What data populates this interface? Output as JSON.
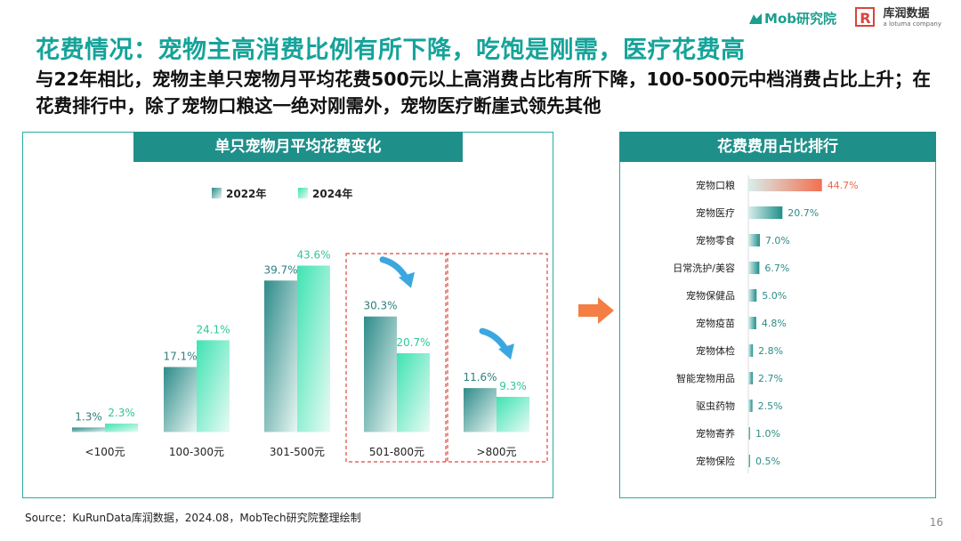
{
  "title": "花费情况：宠物主高消费比例有所下降，吃饱是刚需，医疗花费高",
  "subtitle": "与22年相比，宠物主单只宠物月平均花费500元以上高消费占比有所下降，100-500元中档消费占比上升；在花费排行中，除了宠物口粮这一绝对刚需外，宠物医疗断崖式领先其他",
  "logos": {
    "mob": "Mob研究院",
    "kurun_mark": "R",
    "kurun": "库润数据",
    "kurun_sub": "a lotuma company"
  },
  "source": "Source：KuRunData库润数据，2024.08，MobTech研究院整理绘制",
  "page_number": "16",
  "colors": {
    "accent": "#15A39A",
    "header": "#1F8F8A",
    "series2022": "#2E8B8A",
    "series2024": "#3FE3B2",
    "highlight": "#F36F4F",
    "arrow": "#3BA7E0",
    "dash": "#E0483E"
  },
  "chart_data": [
    {
      "type": "bar",
      "title": "单只宠物月平均花费变化",
      "categories": [
        "<100元",
        "100-300元",
        "301-500元",
        "501-800元",
        ">800元"
      ],
      "series": [
        {
          "name": "2022年",
          "values": [
            1.3,
            17.1,
            39.7,
            30.3,
            11.6
          ],
          "labels": [
            "1.3%",
            "17.1%",
            "39.7%",
            "30.3%",
            "11.6%"
          ]
        },
        {
          "name": "2024年",
          "values": [
            2.3,
            24.1,
            43.6,
            20.7,
            9.3
          ],
          "labels": [
            "2.3%",
            "24.1%",
            "43.6%",
            "20.7%",
            "9.3%"
          ]
        }
      ],
      "legend": "top",
      "highlighted_categories": [
        "501-800元",
        ">800元"
      ]
    },
    {
      "type": "bar",
      "orientation": "horizontal",
      "title": "花费费用占比排行",
      "categories": [
        "宠物口粮",
        "宠物医疗",
        "宠物零食",
        "日常洗护/美容",
        "宠物保健品",
        "宠物疫苗",
        "宠物体检",
        "智能宠物用品",
        "驱虫药物",
        "宠物寄养",
        "宠物保险"
      ],
      "values": [
        44.7,
        20.7,
        7.0,
        6.7,
        5.0,
        4.8,
        2.8,
        2.7,
        2.5,
        1.0,
        0.5
      ],
      "labels": [
        "44.7%",
        "20.7%",
        "7.0%",
        "6.7%",
        "5.0%",
        "4.8%",
        "2.8%",
        "2.7%",
        "2.5%",
        "1.0%",
        "0.5%"
      ]
    }
  ]
}
